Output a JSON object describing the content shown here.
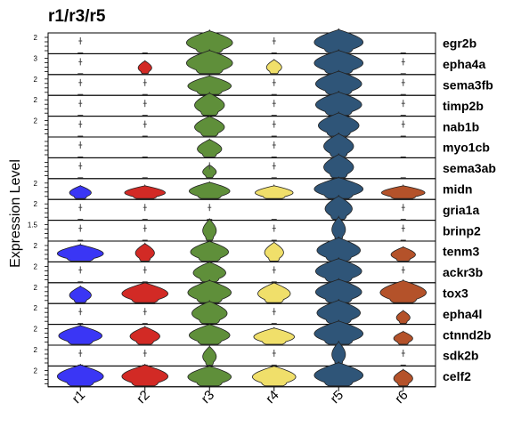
{
  "chart_data": {
    "type": "stacked-violin",
    "title": "r1/r3/r5",
    "ylabel": "Expression Level",
    "categories": [
      "r1",
      "r2",
      "r3",
      "r4",
      "r5",
      "r6"
    ],
    "colors": {
      "r1": "#3a36f5",
      "r2": "#d22a25",
      "r3": "#5f8f3a",
      "r4": "#f0df6a",
      "r5": "#2f5578",
      "r6": "#b4522a"
    },
    "genes": [
      {
        "name": "egr2b",
        "ytick": "2",
        "widths": [
          0.0,
          0.0,
          0.85,
          0.0,
          0.9,
          0.0
        ],
        "heights": [
          0.0,
          0.0,
          0.95,
          0.0,
          1.0,
          0.0
        ],
        "centers": [
          0.0,
          0.0,
          0.0,
          0.0,
          0.0,
          0.0
        ],
        "outliers": [
          true,
          false,
          false,
          true,
          false,
          false
        ]
      },
      {
        "name": "epha4a",
        "ytick": "3",
        "widths": [
          0.0,
          0.25,
          0.85,
          0.28,
          0.9,
          0.0
        ],
        "heights": [
          0.0,
          0.55,
          1.0,
          0.6,
          1.0,
          0.0
        ],
        "centers": [
          0.0,
          0.0,
          0.0,
          0.0,
          0.0,
          0.0
        ],
        "outliers": [
          true,
          false,
          false,
          false,
          false,
          true
        ]
      },
      {
        "name": "sema3fb",
        "ytick": "2",
        "widths": [
          0.0,
          0.0,
          0.8,
          0.0,
          0.85,
          0.0
        ],
        "heights": [
          0.0,
          0.0,
          0.8,
          0.0,
          1.0,
          0.0
        ],
        "centers": [
          0.0,
          0.0,
          0.0,
          0.0,
          0.0,
          0.0
        ],
        "outliers": [
          true,
          true,
          false,
          true,
          false,
          true
        ]
      },
      {
        "name": "timp2b",
        "ytick": "2",
        "widths": [
          0.0,
          0.0,
          0.55,
          0.0,
          0.85,
          0.0
        ],
        "heights": [
          0.0,
          0.0,
          0.95,
          0.0,
          1.0,
          0.0
        ],
        "centers": [
          0.0,
          0.0,
          0.0,
          0.0,
          0.0,
          0.0
        ],
        "outliers": [
          true,
          true,
          false,
          true,
          false,
          true
        ]
      },
      {
        "name": "nab1b",
        "ytick": "2",
        "widths": [
          0.0,
          0.0,
          0.55,
          0.0,
          0.75,
          0.0
        ],
        "heights": [
          0.0,
          0.0,
          0.85,
          0.0,
          1.0,
          0.0
        ],
        "centers": [
          0.0,
          0.0,
          0.0,
          0.0,
          0.0,
          0.0
        ],
        "outliers": [
          true,
          true,
          false,
          true,
          false,
          true
        ]
      },
      {
        "name": "myo1cb",
        "ytick": "",
        "widths": [
          0.0,
          0.0,
          0.45,
          0.0,
          0.55,
          0.0
        ],
        "heights": [
          0.0,
          0.0,
          0.75,
          0.0,
          1.0,
          0.0
        ],
        "centers": [
          0.0,
          0.0,
          0.0,
          0.0,
          0.0,
          0.0
        ],
        "outliers": [
          true,
          false,
          false,
          true,
          false,
          false
        ]
      },
      {
        "name": "sema3ab",
        "ytick": "",
        "widths": [
          0.0,
          0.0,
          0.25,
          0.0,
          0.55,
          0.0
        ],
        "heights": [
          0.0,
          0.0,
          0.55,
          0.0,
          1.0,
          0.0
        ],
        "centers": [
          0.0,
          0.0,
          0.0,
          0.0,
          0.0,
          0.0
        ],
        "outliers": [
          true,
          false,
          true,
          true,
          false,
          false
        ]
      },
      {
        "name": "midn",
        "ytick": "2",
        "widths": [
          0.4,
          0.75,
          0.75,
          0.7,
          0.9,
          0.8
        ],
        "heights": [
          0.55,
          0.55,
          0.7,
          0.55,
          0.9,
          0.55
        ],
        "centers": [
          0.0,
          0.0,
          0.0,
          0.0,
          0.0,
          0.0
        ],
        "outliers": [
          false,
          false,
          false,
          false,
          false,
          false
        ]
      },
      {
        "name": "gria1a",
        "ytick": "2",
        "widths": [
          0.0,
          0.0,
          0.0,
          0.0,
          0.5,
          0.0
        ],
        "heights": [
          0.0,
          0.0,
          0.0,
          0.0,
          1.0,
          0.0
        ],
        "centers": [
          0.0,
          0.0,
          0.0,
          0.0,
          0.0,
          0.0
        ],
        "outliers": [
          true,
          true,
          true,
          false,
          false,
          true
        ]
      },
      {
        "name": "brinp2",
        "ytick": "1.5",
        "widths": [
          0.0,
          0.0,
          0.25,
          0.0,
          0.25,
          0.0
        ],
        "heights": [
          0.0,
          0.0,
          0.9,
          0.0,
          1.0,
          0.0
        ],
        "centers": [
          0.0,
          0.0,
          0.0,
          0.0,
          0.0,
          0.0
        ],
        "outliers": [
          true,
          true,
          false,
          true,
          false,
          true
        ]
      },
      {
        "name": "tenm3",
        "ytick": "2",
        "widths": [
          0.85,
          0.35,
          0.7,
          0.35,
          0.8,
          0.45
        ],
        "heights": [
          0.7,
          0.75,
          0.85,
          0.8,
          1.0,
          0.6
        ],
        "centers": [
          0.0,
          0.0,
          0.0,
          0.0,
          0.0,
          0.0
        ],
        "outliers": [
          false,
          false,
          false,
          false,
          false,
          false
        ]
      },
      {
        "name": "ackr3b",
        "ytick": "2",
        "widths": [
          0.0,
          0.0,
          0.6,
          0.0,
          0.85,
          0.0
        ],
        "heights": [
          0.0,
          0.0,
          0.85,
          0.0,
          1.0,
          0.0
        ],
        "centers": [
          0.0,
          0.0,
          0.0,
          0.0,
          0.0,
          0.0
        ],
        "outliers": [
          true,
          true,
          false,
          true,
          false,
          true
        ]
      },
      {
        "name": "tox3",
        "ytick": "2",
        "widths": [
          0.4,
          0.85,
          0.8,
          0.6,
          0.85,
          0.85
        ],
        "heights": [
          0.7,
          0.85,
          0.95,
          0.85,
          1.0,
          0.95
        ],
        "centers": [
          0.0,
          0.0,
          0.0,
          0.0,
          0.0,
          0.0
        ],
        "outliers": [
          false,
          false,
          false,
          false,
          false,
          false
        ]
      },
      {
        "name": "epha4l",
        "ytick": "2",
        "widths": [
          0.0,
          0.0,
          0.65,
          0.0,
          0.8,
          0.25
        ],
        "heights": [
          0.0,
          0.0,
          0.95,
          0.0,
          1.0,
          0.55
        ],
        "centers": [
          0.0,
          0.0,
          0.0,
          0.0,
          0.0,
          0.0
        ],
        "outliers": [
          true,
          true,
          false,
          true,
          false,
          false
        ]
      },
      {
        "name": "ctnnd2b",
        "ytick": "2",
        "widths": [
          0.8,
          0.55,
          0.75,
          0.75,
          0.9,
          0.35
        ],
        "heights": [
          0.8,
          0.75,
          0.85,
          0.7,
          1.0,
          0.55
        ],
        "centers": [
          0.0,
          0.0,
          0.0,
          0.0,
          0.0,
          0.0
        ],
        "outliers": [
          false,
          false,
          false,
          false,
          false,
          false
        ]
      },
      {
        "name": "sdk2b",
        "ytick": "2",
        "widths": [
          0.0,
          0.0,
          0.25,
          0.0,
          0.25,
          0.0
        ],
        "heights": [
          0.0,
          0.0,
          0.8,
          0.0,
          1.0,
          0.0
        ],
        "centers": [
          0.0,
          0.0,
          0.0,
          0.0,
          0.0,
          0.0
        ],
        "outliers": [
          true,
          true,
          false,
          true,
          false,
          true
        ]
      },
      {
        "name": "celf2",
        "ytick": "2",
        "widths": [
          0.85,
          0.85,
          0.8,
          0.8,
          0.9,
          0.35
        ],
        "heights": [
          0.9,
          0.9,
          0.85,
          0.85,
          1.0,
          0.7
        ],
        "centers": [
          0.0,
          0.0,
          0.0,
          0.0,
          0.0,
          0.0
        ],
        "outliers": [
          false,
          false,
          false,
          false,
          false,
          false
        ]
      }
    ]
  }
}
